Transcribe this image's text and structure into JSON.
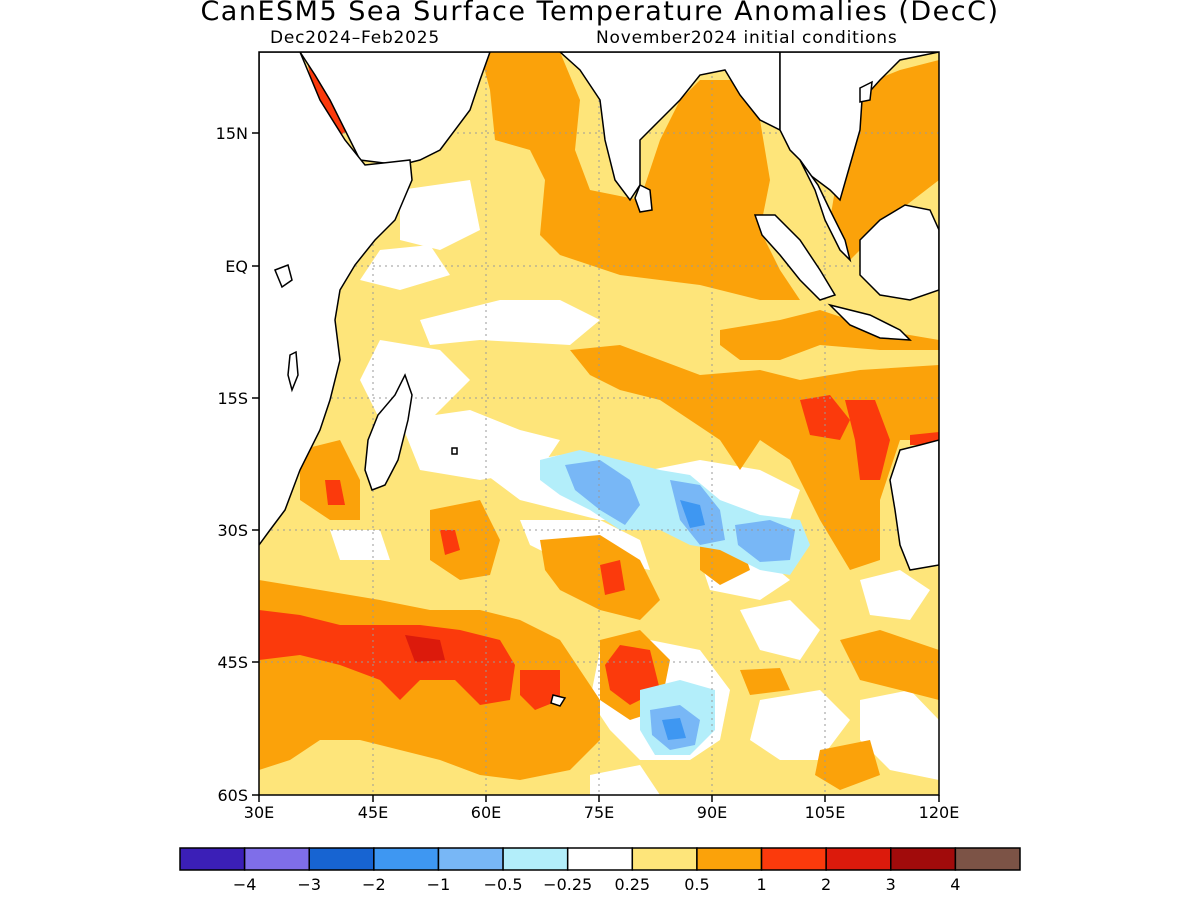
{
  "map": {
    "title": "CanESM5 Sea Surface Temperature Anomalies (DecC)",
    "period": "Dec2024–Feb2025",
    "init": "November2024 initial conditions",
    "lat_ticks": [
      "15N",
      "EQ",
      "15S",
      "30S",
      "45S",
      "60S"
    ],
    "lon_ticks": [
      "30E",
      "45E",
      "60E",
      "75E",
      "90E",
      "105E",
      "120E"
    ],
    "extent": {
      "lon": [
        30,
        120
      ],
      "lat": [
        -60,
        24
      ]
    },
    "grid": "dotted"
  },
  "colorbar": {
    "colors": [
      "#3b1fb7",
      "#7f6ee9",
      "#1764d2",
      "#3e97f2",
      "#78b7f6",
      "#b3eefa",
      "#ffffff",
      "#fee57a",
      "#fba20a",
      "#fb3a0c",
      "#dc1a0c",
      "#a10b0b",
      "#7c5346"
    ],
    "labels": [
      "−4",
      "−3",
      "−2",
      "−1",
      "−0.5",
      "−0.25",
      "0.25",
      "0.5",
      "1",
      "2",
      "3",
      "4"
    ]
  }
}
